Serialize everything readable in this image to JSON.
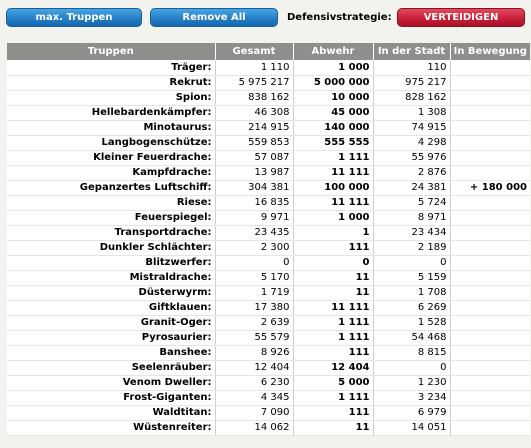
{
  "toolbar": {
    "max_label": "max. Truppen",
    "remove_label": "Remove All",
    "strategy_label": "Defensivstrategie:",
    "defend_label": "VERTEIDIGEN"
  },
  "table": {
    "headers": [
      "Truppen",
      "Gesamt",
      "Abwehr",
      "In der Stadt",
      "In Bewegung"
    ],
    "rows": [
      {
        "name": "Träger:",
        "total": "1 110",
        "defense": "1 000",
        "city": "110",
        "moving": ""
      },
      {
        "name": "Rekrut:",
        "total": "5 975 217",
        "defense": "5 000 000",
        "city": "975 217",
        "moving": ""
      },
      {
        "name": "Spion:",
        "total": "838 162",
        "defense": "10 000",
        "city": "828 162",
        "moving": ""
      },
      {
        "name": "Hellebardenkämpfer:",
        "total": "46 308",
        "defense": "45 000",
        "city": "1 308",
        "moving": ""
      },
      {
        "name": "Minotaurus:",
        "total": "214 915",
        "defense": "140 000",
        "city": "74 915",
        "moving": ""
      },
      {
        "name": "Langbogenschütze:",
        "total": "559 853",
        "defense": "555 555",
        "city": "4 298",
        "moving": ""
      },
      {
        "name": "Kleiner Feuerdrache:",
        "total": "57 087",
        "defense": "1 111",
        "city": "55 976",
        "moving": ""
      },
      {
        "name": "Kampfdrache:",
        "total": "13 987",
        "defense": "11 111",
        "city": "2 876",
        "moving": ""
      },
      {
        "name": "Gepanzertes Luftschiff:",
        "total": "304 381",
        "defense": "100 000",
        "city": "24 381",
        "moving": "+ 180 000"
      },
      {
        "name": "Riese:",
        "total": "16 835",
        "defense": "11 111",
        "city": "5 724",
        "moving": ""
      },
      {
        "name": "Feuerspiegel:",
        "total": "9 971",
        "defense": "1 000",
        "city": "8 971",
        "moving": ""
      },
      {
        "name": "Transportdrache:",
        "total": "23 435",
        "defense": "1",
        "city": "23 434",
        "moving": ""
      },
      {
        "name": "Dunkler Schlächter:",
        "total": "2 300",
        "defense": "111",
        "city": "2 189",
        "moving": ""
      },
      {
        "name": "Blitzwerfer:",
        "total": "0",
        "defense": "0",
        "city": "0",
        "moving": ""
      },
      {
        "name": "Mistraldrache:",
        "total": "5 170",
        "defense": "11",
        "city": "5 159",
        "moving": ""
      },
      {
        "name": "Düsterwyrm:",
        "total": "1 719",
        "defense": "11",
        "city": "1 708",
        "moving": ""
      },
      {
        "name": "Giftklauen:",
        "total": "17 380",
        "defense": "11 111",
        "city": "6 269",
        "moving": ""
      },
      {
        "name": "Granit-Oger:",
        "total": "2 639",
        "defense": "1 111",
        "city": "1 528",
        "moving": ""
      },
      {
        "name": "Pyrosaurier:",
        "total": "55 579",
        "defense": "1 111",
        "city": "54 468",
        "moving": ""
      },
      {
        "name": "Banshee:",
        "total": "8 926",
        "defense": "111",
        "city": "8 815",
        "moving": ""
      },
      {
        "name": "Seelenräuber:",
        "total": "12 404",
        "defense": "12 404",
        "city": "0",
        "moving": ""
      },
      {
        "name": "Venom Dweller:",
        "total": "6 230",
        "defense": "5 000",
        "city": "1 230",
        "moving": ""
      },
      {
        "name": "Frost-Giganten:",
        "total": "4 345",
        "defense": "1 111",
        "city": "3 234",
        "moving": ""
      },
      {
        "name": "Waldtitan:",
        "total": "7 090",
        "defense": "111",
        "city": "6 979",
        "moving": ""
      },
      {
        "name": "Wüstenreiter:",
        "total": "14 062",
        "defense": "11",
        "city": "14 051",
        "moving": ""
      }
    ]
  }
}
